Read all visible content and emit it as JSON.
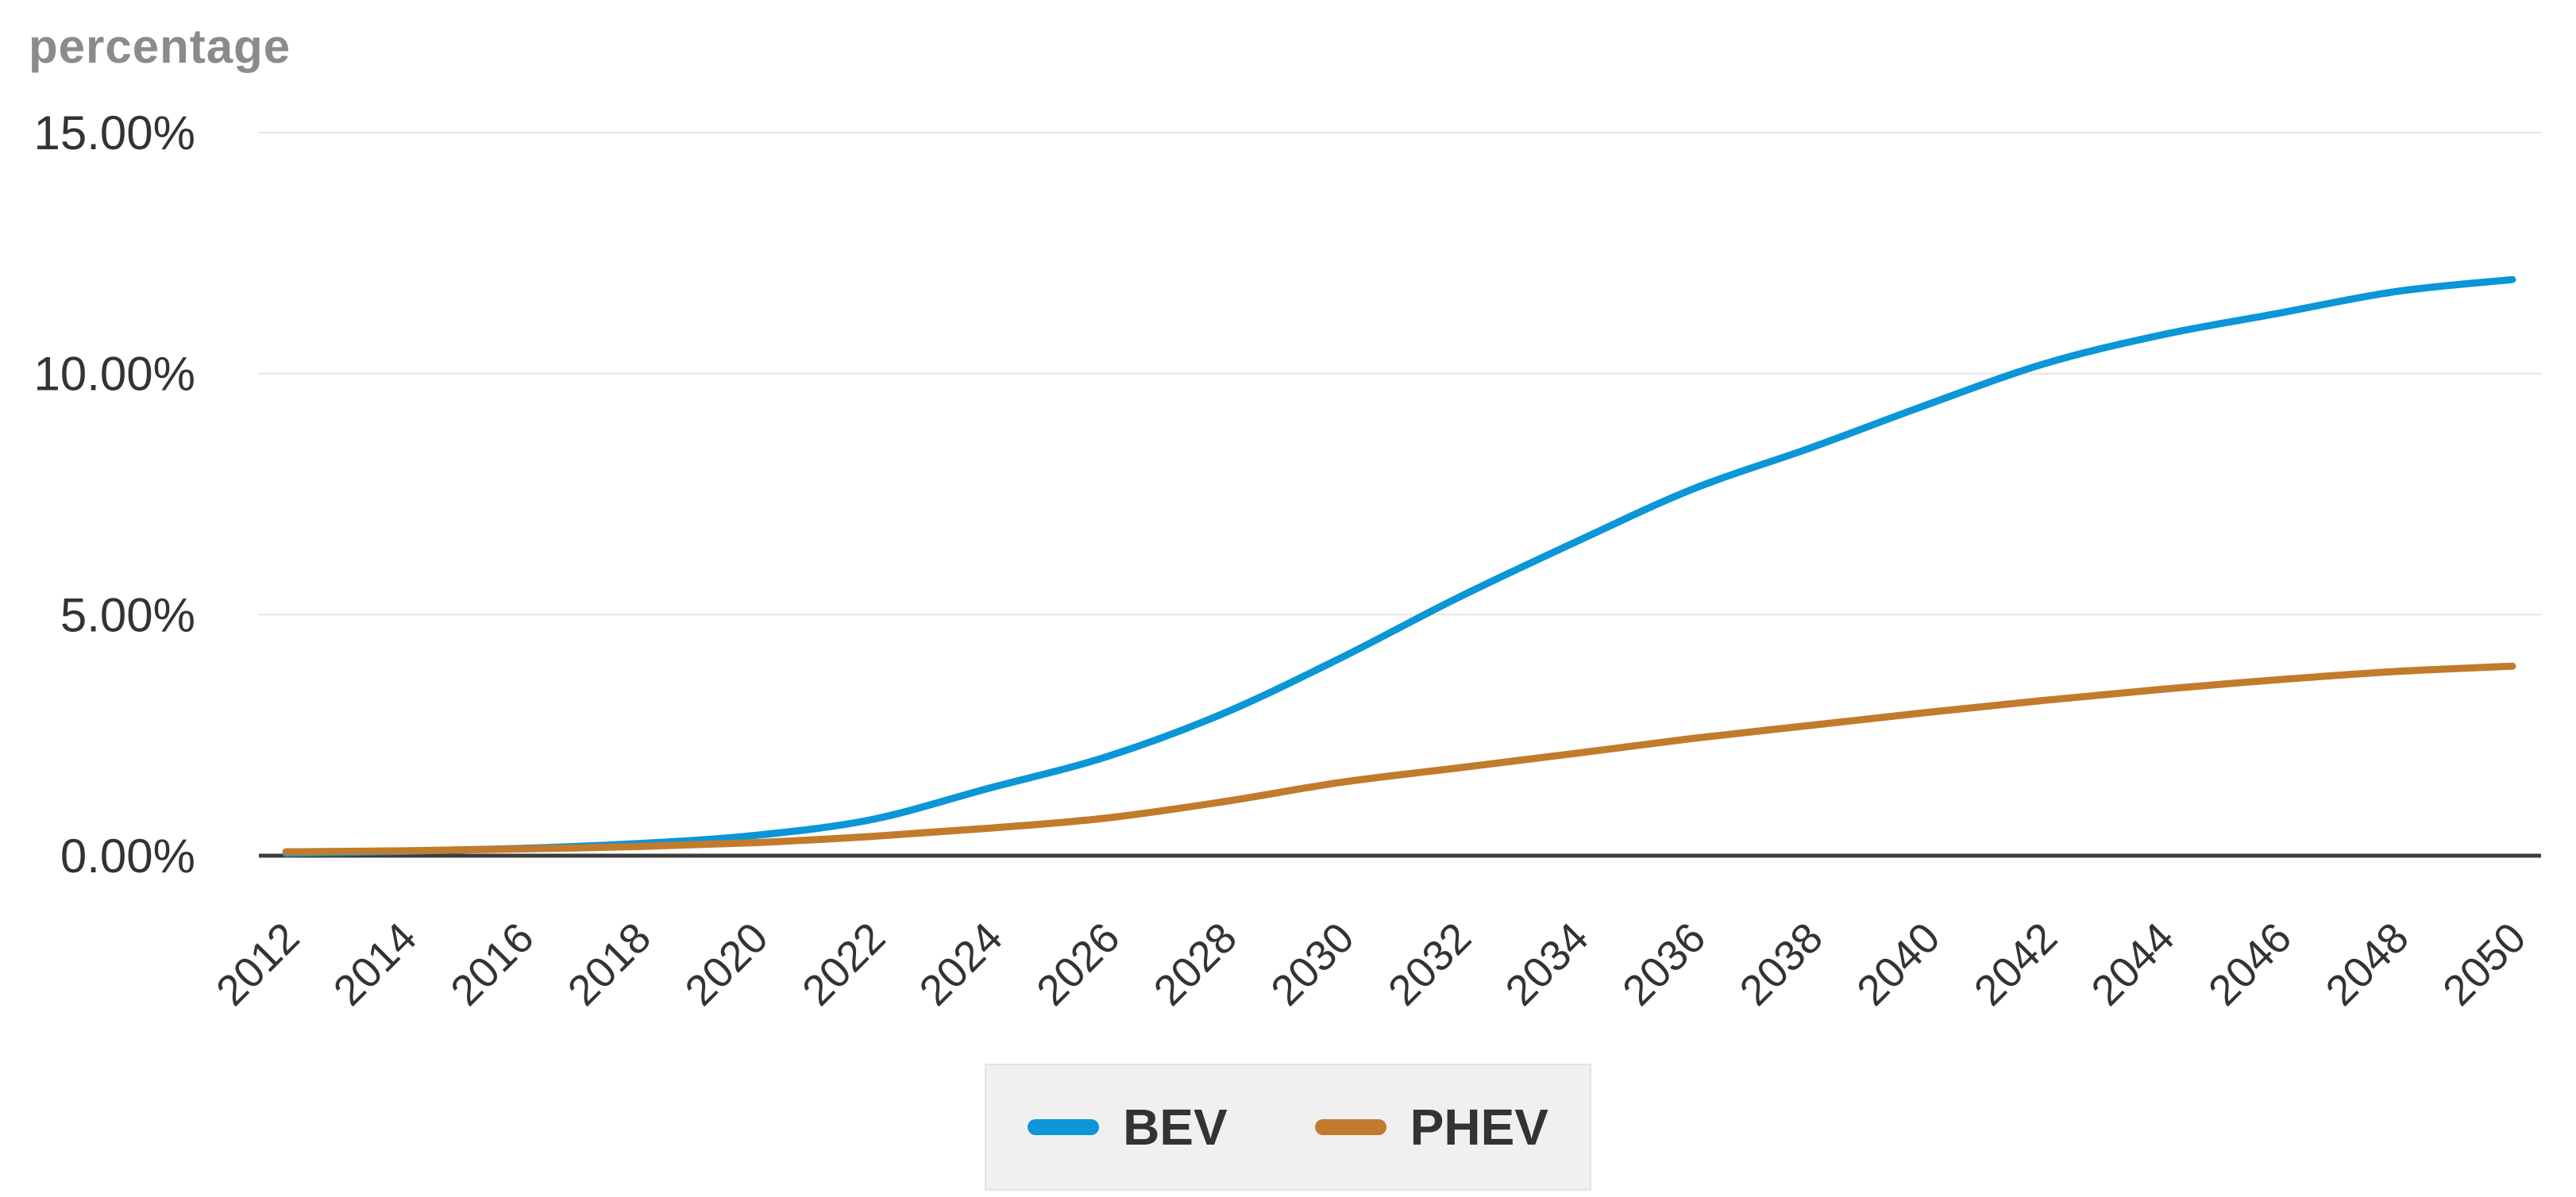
{
  "chart_data": {
    "type": "line",
    "title": "percentage",
    "xlabel": "",
    "ylabel": "percentage",
    "grid": true,
    "legend_position": "bottom",
    "ylim": [
      0,
      15
    ],
    "yticks": [
      {
        "value": 15,
        "label": "15.00%"
      },
      {
        "value": 10,
        "label": "10.00%"
      },
      {
        "value": 5,
        "label": "5.00%"
      },
      {
        "value": 0,
        "label": "0.00%"
      }
    ],
    "x": [
      2012,
      2014,
      2016,
      2018,
      2020,
      2022,
      2024,
      2026,
      2028,
      2030,
      2032,
      2034,
      2036,
      2038,
      2040,
      2042,
      2044,
      2046,
      2048,
      2050
    ],
    "series": [
      {
        "name": "BEV",
        "color": "#0a96d7",
        "values": [
          0.05,
          0.09,
          0.15,
          0.25,
          0.42,
          0.75,
          1.4,
          2.05,
          2.95,
          4.1,
          5.35,
          6.5,
          7.6,
          8.45,
          9.35,
          10.2,
          10.8,
          11.25,
          11.7,
          11.95
        ]
      },
      {
        "name": "PHEV",
        "color": "#c27b2c",
        "values": [
          0.08,
          0.1,
          0.14,
          0.19,
          0.27,
          0.4,
          0.57,
          0.78,
          1.12,
          1.52,
          1.82,
          2.12,
          2.43,
          2.7,
          2.97,
          3.22,
          3.45,
          3.65,
          3.82,
          3.93
        ]
      }
    ],
    "colors": {
      "grid": "#e6e6e6",
      "axis": "#3c3c3c",
      "tick_text": "#333333",
      "title_text": "#8b8b8b",
      "legend_bg": "#f0f0f0",
      "legend_border": "#e3e3e3"
    }
  }
}
